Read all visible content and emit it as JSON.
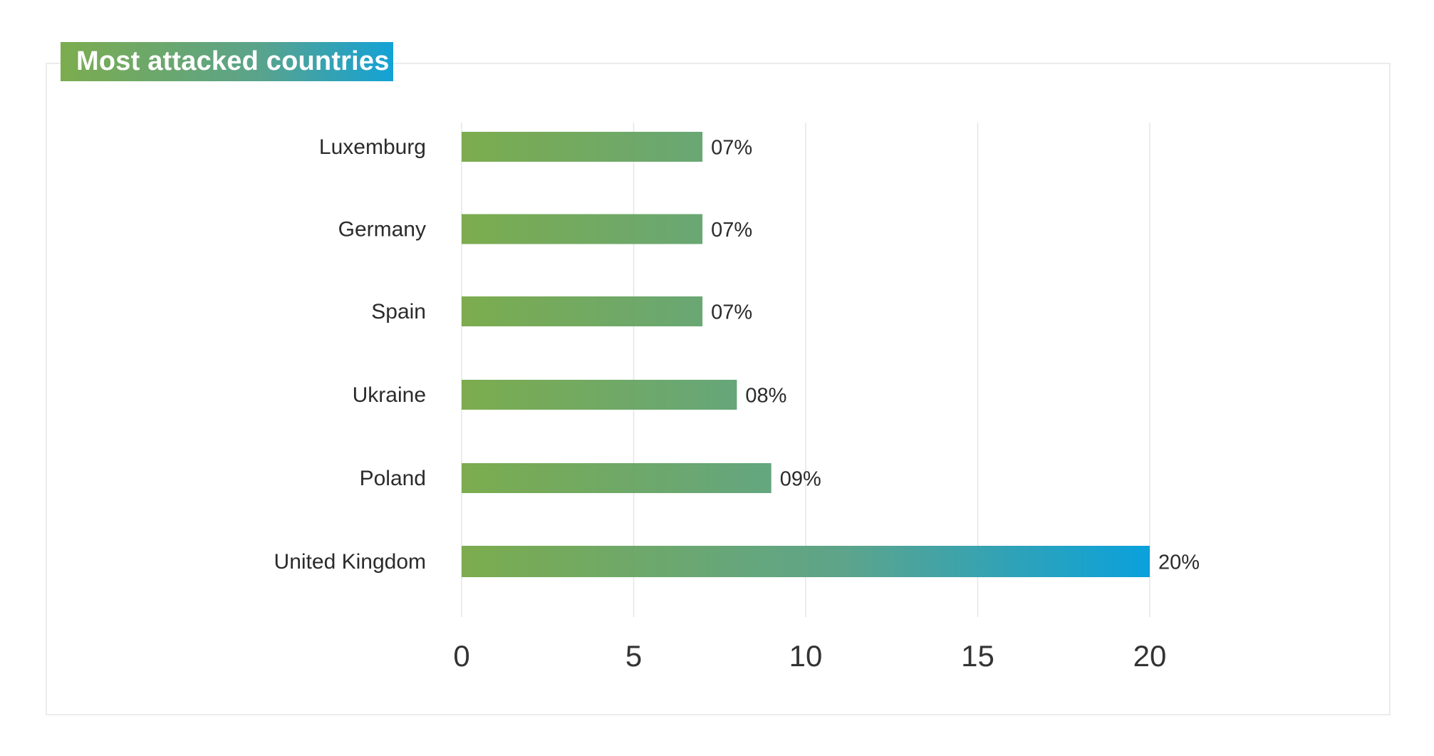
{
  "title": "Most attacked countries",
  "colors": {
    "gradient_start": "#7cac4e",
    "gradient_mid": "#5ea48a",
    "gradient_end": "#0aa1dc",
    "gridline": "#e6e6e6",
    "card_border": "#ececec",
    "text": "#2b2b2b"
  },
  "chart_data": {
    "type": "bar",
    "orientation": "horizontal",
    "title": "Most attacked countries",
    "categories": [
      "Luxemburg",
      "Germany",
      "Spain",
      "Ukraine",
      "Poland",
      "United Kingdom"
    ],
    "values": [
      7,
      7,
      7,
      8,
      9,
      20
    ],
    "value_labels": [
      "07%",
      "07%",
      "07%",
      "08%",
      "09%",
      "20%"
    ],
    "x_ticks": [
      "0",
      "5",
      "10",
      "15",
      "20"
    ],
    "xlim": [
      0,
      20
    ],
    "grid": true,
    "legend": "none"
  }
}
